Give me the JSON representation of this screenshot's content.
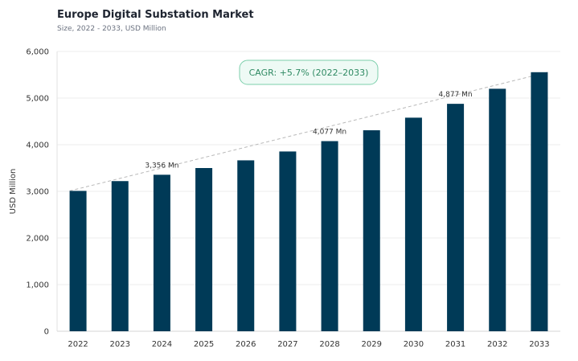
{
  "header": {
    "title": "Europe Digital Substation Market",
    "subtitle": "Size, 2022 - 2033, USD Million"
  },
  "colors": {
    "bar": "#003a57",
    "grid": "#ececec",
    "trend": "#b9b9b9",
    "cagr_border": "#7ccfab",
    "cagr_fill": "#eefaf5",
    "cagr_text": "#2f8a63"
  },
  "chart_data": {
    "type": "bar",
    "title": "Europe Digital Substation Market",
    "subtitle": "Size, 2022 - 2033, USD Million",
    "xlabel": "",
    "ylabel": "USD Million",
    "ylim": [
      0,
      6000
    ],
    "yticks": [
      0,
      1000,
      2000,
      3000,
      4000,
      5000,
      6000
    ],
    "ytick_labels": [
      "0",
      "1,000",
      "2,000",
      "3,000",
      "4,000",
      "5,000",
      "6,000"
    ],
    "grid": true,
    "categories": [
      "2022",
      "2023",
      "2024",
      "2025",
      "2026",
      "2027",
      "2028",
      "2029",
      "2030",
      "2031",
      "2032",
      "2033"
    ],
    "values": [
      3010,
      3220,
      3356,
      3500,
      3665,
      3855,
      4077,
      4310,
      4580,
      4877,
      5200,
      5555
    ],
    "data_labels": [
      {
        "index": 2,
        "text": "3,356 Mn"
      },
      {
        "index": 6,
        "text": "4,077 Mn"
      },
      {
        "index": 9,
        "text": "4,877 Mn"
      }
    ],
    "annotation": "CAGR: +5.7% (2022–2033)",
    "trendline": {
      "from_index": 0,
      "to_index": 11,
      "style": "dashed"
    }
  }
}
